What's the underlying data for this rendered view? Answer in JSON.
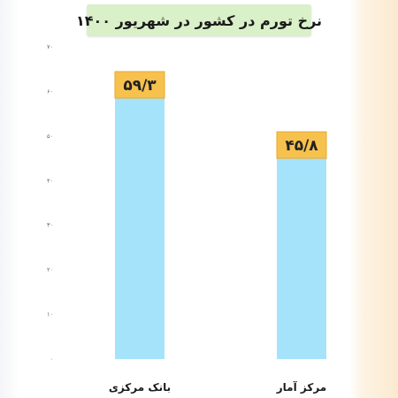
{
  "colors": {
    "bar": "#a5e3fb",
    "cap": "#f7c14e",
    "cap_border": "#e7a82c",
    "title_bg": "#d9f0c9"
  },
  "chart_data": {
    "type": "bar",
    "title": "نرخ تورم در کشور در شهریور ۱۴۰۰",
    "xlabel": "",
    "ylabel": "",
    "categories": [
      "بانک مرکزی",
      "مرکز آمار"
    ],
    "values": [
      59.3,
      45.8
    ],
    "value_labels": [
      "۵۹/۳",
      "۴۵/۸"
    ],
    "ylim": [
      0,
      70
    ],
    "yticks": [
      0,
      10,
      20,
      30,
      40,
      50,
      60,
      70
    ],
    "ytick_labels": [
      "۰",
      "۱۰",
      "۲۰",
      "۳۰",
      "۴۰",
      "۵۰",
      "۶۰",
      "۷۰"
    ],
    "grid": false,
    "legend": "none"
  }
}
